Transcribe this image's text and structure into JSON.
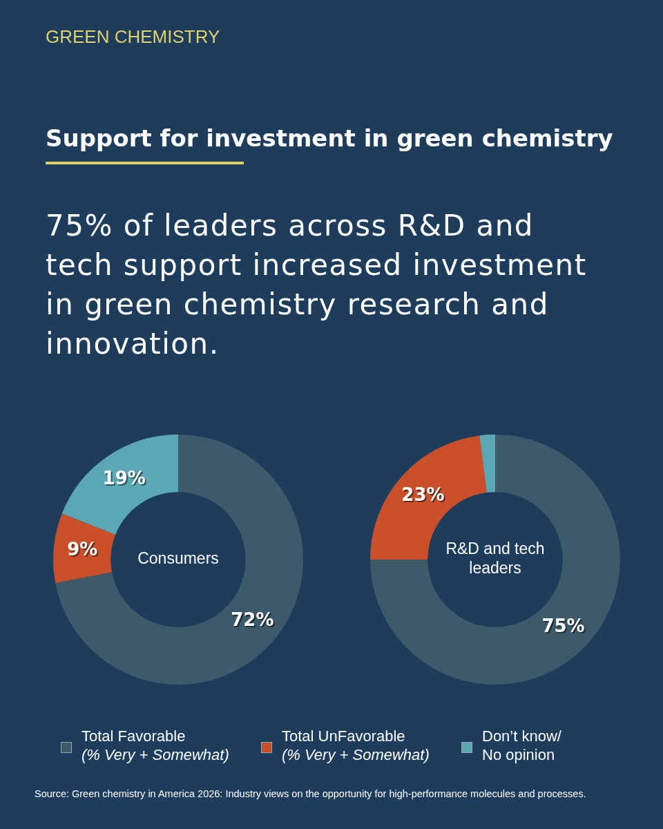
{
  "chart_data": {
    "type": "donut",
    "title": "Support for investment in green chemistry",
    "subtitle": "75% of leaders across R&D and tech support increased investment in green chemistry research and innovation.",
    "categories": [
      "Total Favorable (% Very + Somewhat)",
      "Total UnFavorable (% Very + Somewhat)",
      "Don’t know/ No opinion"
    ],
    "colors": [
      "#3d5a6b",
      "#c9502b",
      "#5ba8b4"
    ],
    "legend": "bottom",
    "series": [
      {
        "name": "Consumers",
        "values": [
          72,
          9,
          19
        ],
        "value_labels": [
          "72%",
          "9%",
          "19%"
        ]
      },
      {
        "name": "R&D and tech leaders",
        "values": [
          75,
          23,
          2
        ],
        "value_labels": [
          "75%",
          "23%",
          null
        ]
      }
    ],
    "annotations": [
      "GREEN CHEMISTRY",
      "Source: Green chemistry in America 2026: Industry views on the opportunity for high-performance molecules and processes."
    ]
  }
}
